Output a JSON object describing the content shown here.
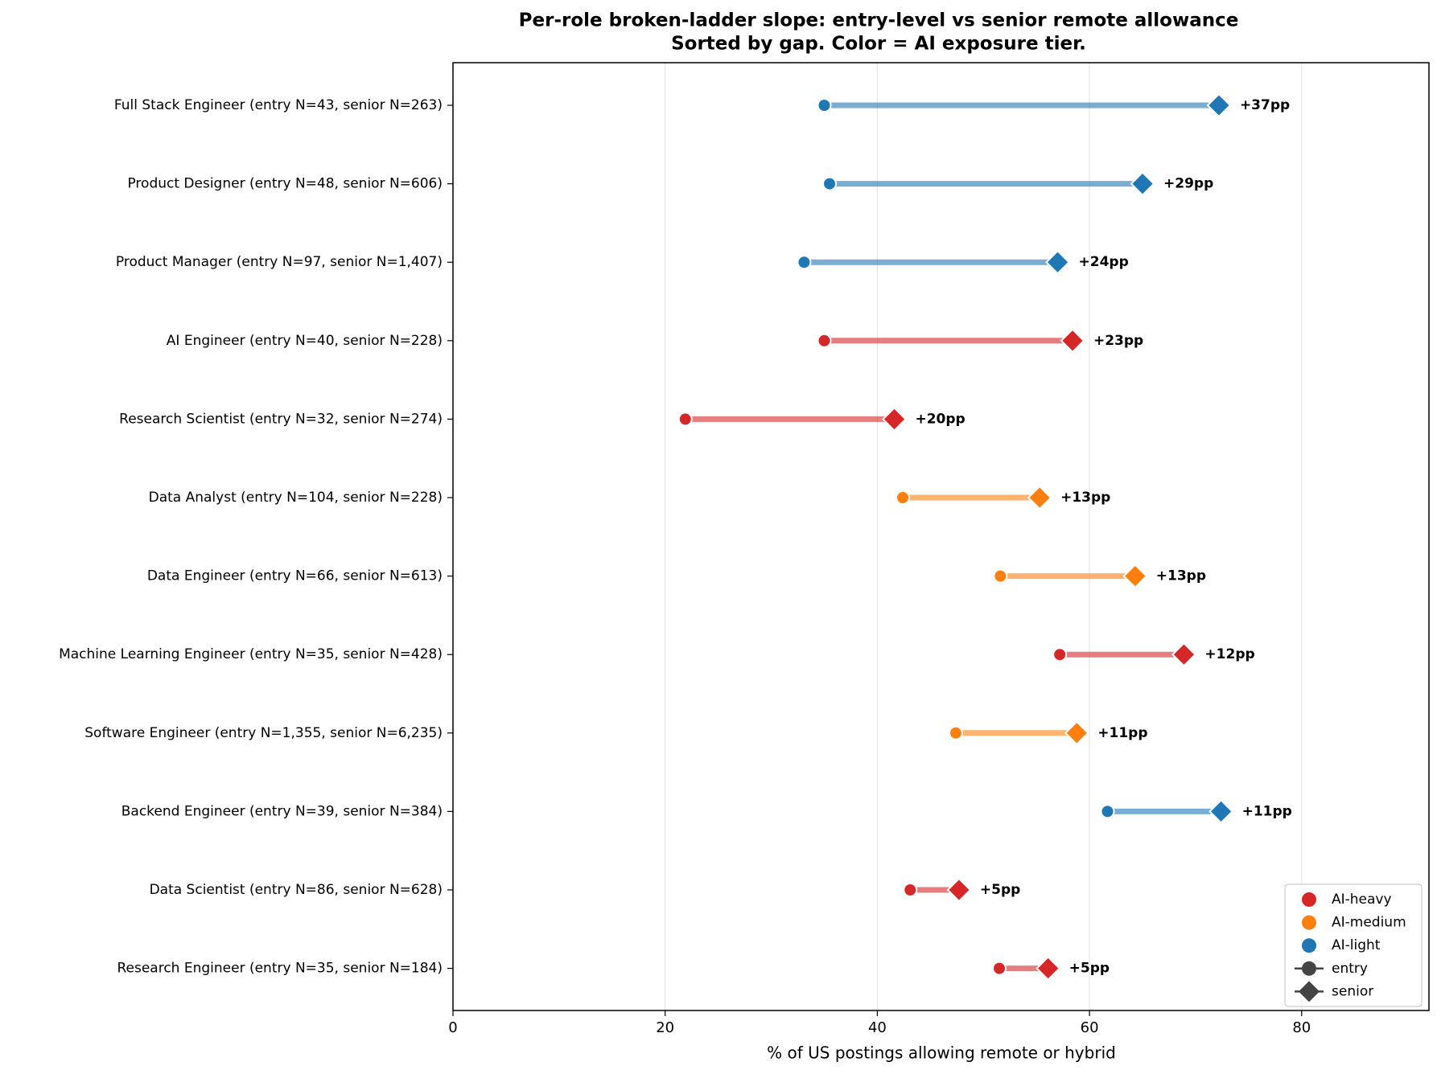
{
  "chart_data": {
    "type": "dumbbell",
    "title": "Per-role broken-ladder slope: entry-level vs senior remote allowance",
    "subtitle": "Sorted by gap. Color = AI exposure tier.",
    "x_label": "% of US postings allowing remote or hybrid",
    "categories": [
      "Full Stack Engineer  (entry N=43, senior N=263)",
      "Product Designer  (entry N=48, senior N=606)",
      "Product Manager  (entry N=97, senior N=1,407)",
      "AI Engineer  (entry N=40, senior N=228)",
      "Research Scientist  (entry N=32, senior N=274)",
      "Data Analyst  (entry N=104, senior N=228)",
      "Data Engineer  (entry N=66, senior N=613)",
      "Machine Learning Engineer  (entry N=35, senior N=428)",
      "Software Engineer  (entry N=1,355, senior N=6,235)",
      "Backend Engineer  (entry N=39, senior N=384)",
      "Data Scientist  (entry N=86, senior N=628)",
      "Research Engineer  (entry N=35, senior N=184)"
    ],
    "category_tier": [
      "AI-light",
      "AI-light",
      "AI-light",
      "AI-heavy",
      "AI-heavy",
      "AI-medium",
      "AI-medium",
      "AI-heavy",
      "AI-medium",
      "AI-light",
      "AI-heavy",
      "AI-heavy"
    ],
    "tiers": [
      {
        "name": "AI-heavy",
        "color": "#d62728"
      },
      {
        "name": "AI-medium",
        "color": "#ff7f0e"
      },
      {
        "name": "AI-light",
        "color": "#1f77b4"
      }
    ],
    "series": [
      {
        "name": "entry",
        "marker": "circle",
        "color": "#444444",
        "values": [
          35.0,
          35.5,
          33.1,
          35.0,
          21.9,
          42.4,
          51.6,
          57.2,
          47.4,
          61.7,
          43.1,
          51.5
        ]
      },
      {
        "name": "senior",
        "marker": "diamond",
        "color": "#444444",
        "values": [
          72.2,
          65.0,
          57.0,
          58.4,
          41.6,
          55.3,
          64.3,
          68.9,
          58.8,
          72.4,
          47.7,
          56.1
        ]
      }
    ],
    "gap_labels": [
      "+37pp",
      "+29pp",
      "+24pp",
      "+23pp",
      "+20pp",
      "+13pp",
      "+13pp",
      "+12pp",
      "+11pp",
      "+11pp",
      "+5pp",
      "+5pp"
    ],
    "xlim": [
      0,
      92
    ],
    "xticks": [
      0,
      20,
      40,
      60,
      80
    ],
    "grid": true,
    "legend_position": "lower right"
  }
}
